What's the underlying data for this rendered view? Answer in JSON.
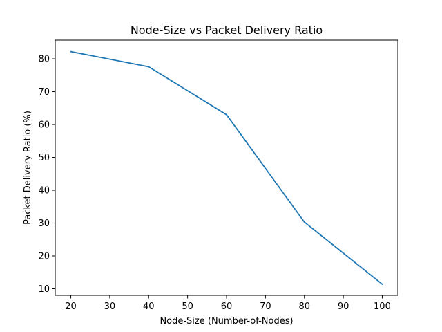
{
  "chart_data": {
    "type": "line",
    "title": "Node-Size vs Packet Delivery Ratio",
    "xlabel": "Node-Size (Number-of-Nodes)",
    "ylabel": "Packet Delivery Ratio (%)",
    "x": [
      20,
      40,
      60,
      80,
      100
    ],
    "series": [
      {
        "values": [
          82.2,
          77.6,
          63.0,
          30.3,
          11.4
        ],
        "color": "#1f77b4"
      }
    ],
    "xlim": [
      16,
      104
    ],
    "ylim": [
      8.0,
      85.7
    ],
    "xticks": [
      20,
      30,
      40,
      50,
      60,
      70,
      80,
      90,
      100
    ],
    "yticks": [
      10,
      20,
      30,
      40,
      50,
      60,
      70,
      80
    ],
    "grid": false,
    "legend": "none"
  }
}
